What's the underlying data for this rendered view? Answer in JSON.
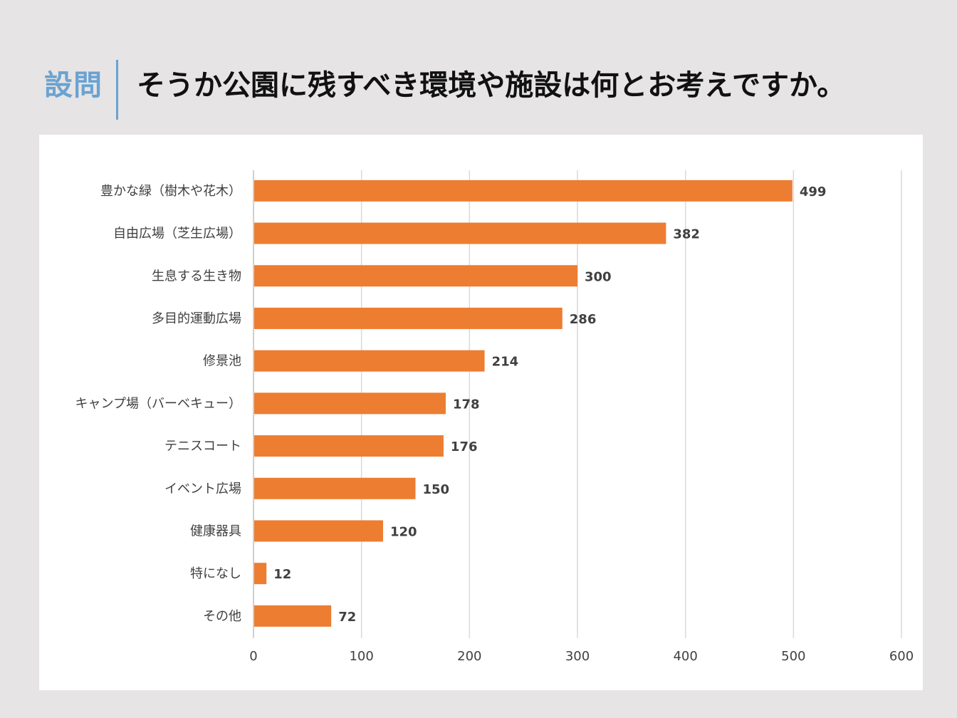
{
  "header": {
    "label": "設問",
    "question": "そうか公園に残すべき環境や施設は何とお考えですか。"
  },
  "colors": {
    "bar": "#ed7d31",
    "accent": "#6aa3d1",
    "grid": "#d9d9d9",
    "background": "#e6e4e5"
  },
  "chart_data": {
    "type": "bar",
    "orientation": "horizontal",
    "title": "そうか公園に残すべき環境や施設は何とお考えですか。",
    "categories": [
      "豊かな緑（樹木や花木）",
      "自由広場（芝生広場）",
      "生息する生き物",
      "多目的運動広場",
      "修景池",
      "キャンプ場（バーベキュー）",
      "テニスコート",
      "イベント広場",
      "健康器具",
      "特になし",
      "その他"
    ],
    "values": [
      499,
      382,
      300,
      286,
      214,
      178,
      176,
      150,
      120,
      12,
      72
    ],
    "xlim": [
      0,
      600
    ],
    "xticks": [
      0,
      100,
      200,
      300,
      400,
      500,
      600
    ],
    "xlabel": "",
    "ylabel": "",
    "grid": true,
    "legend": false
  }
}
